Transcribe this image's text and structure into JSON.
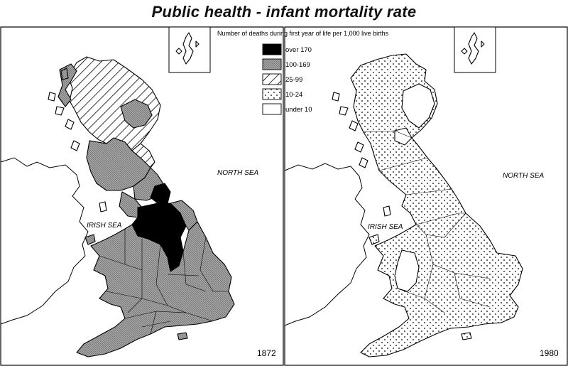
{
  "title": "Public health - infant mortality rate",
  "legend": {
    "caption": "Number of deaths during first year of life per 1,000 live births",
    "entries": [
      {
        "label": "over 170",
        "pattern": "solid-black"
      },
      {
        "label": "100-169",
        "pattern": "dense-grey"
      },
      {
        "label": "25-99",
        "pattern": "diagonal-hatch"
      },
      {
        "label": "10-24",
        "pattern": "dots"
      },
      {
        "label": "under 10",
        "pattern": "white"
      }
    ]
  },
  "maps": [
    {
      "year": "1872",
      "north_sea": "NORTH SEA",
      "irish_sea": "IRISH SEA"
    },
    {
      "year": "1980",
      "north_sea": "NORTH SEA",
      "irish_sea": "IRISH SEA"
    }
  ],
  "colors": {
    "ink": "#000000",
    "paper": "#ffffff",
    "grey": "#9a9a9a"
  }
}
